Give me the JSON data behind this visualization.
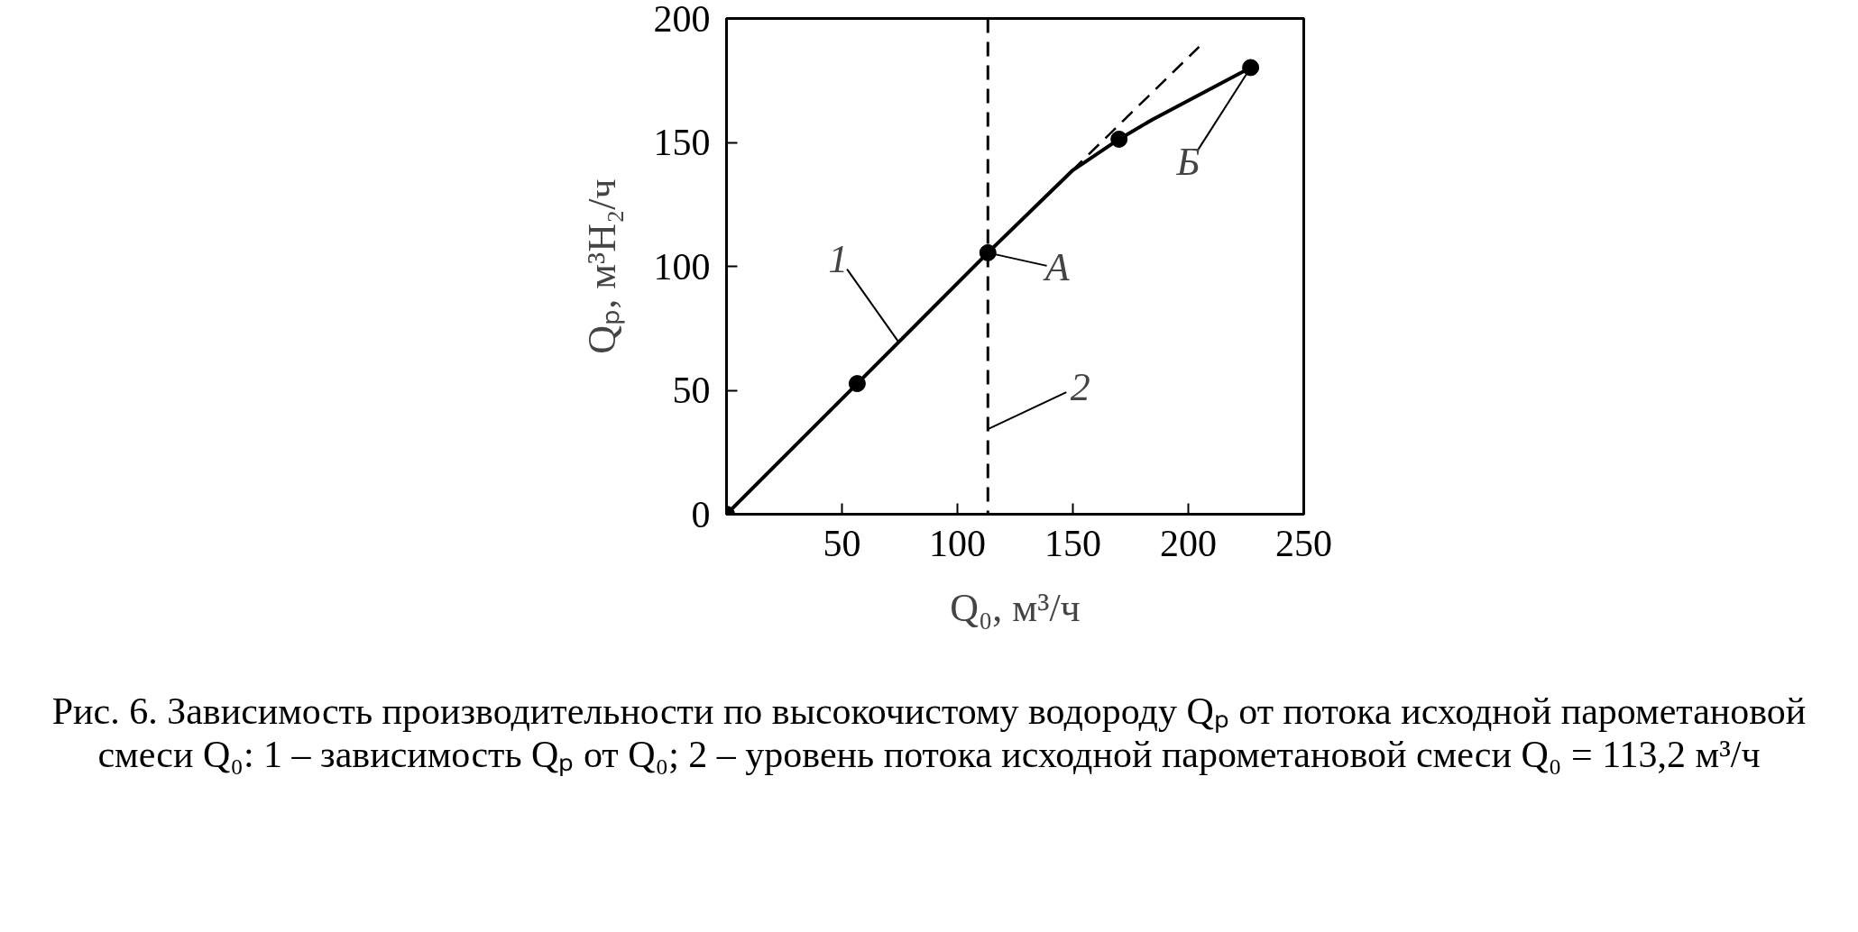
{
  "chart_data": {
    "type": "line",
    "xlabel": "Q₀, м³/ч",
    "ylabel": "Qₚ, м³H₂/ч",
    "xlim": [
      0,
      250
    ],
    "ylim": [
      0,
      200
    ],
    "xticks": [
      50,
      100,
      150,
      200,
      250
    ],
    "yticks": [
      0,
      50,
      100,
      150,
      200
    ],
    "grid": false,
    "series": [
      {
        "color": "#000000",
        "marker": "none",
        "line_style": "solid",
        "x": [
          0,
          56.6,
          113.2,
          150,
          170,
          184.6,
          227
        ],
        "values": [
          0,
          52.7,
          105.5,
          138.8,
          151.3,
          159.3,
          180.2
        ]
      },
      {
        "type": "scatter",
        "color": "#000000",
        "marker": "circle",
        "x": [
          0,
          56.6,
          113.2,
          170,
          227
        ],
        "values": [
          0,
          52.7,
          105.5,
          151.3,
          180.2
        ]
      },
      {
        "color": "#000000",
        "marker": "none",
        "line_style": "dashed",
        "x": [
          113.2,
          204.7
        ],
        "values": [
          105.5,
          188.6
        ]
      }
    ],
    "ref_lines": [
      {
        "axis": "x",
        "value": 113.2,
        "line_style": "dashed",
        "color": "#000000"
      }
    ],
    "annotations": [
      {
        "text": "1",
        "x": 74.3,
        "y": 69.8
      },
      {
        "text": "A",
        "x": 113.2,
        "y": 105.5
      },
      {
        "text": "Б",
        "x": 227,
        "y": 180.2
      },
      {
        "text": "2",
        "x": 113.2,
        "y": 34.3
      },
      "Рис. 6. Зависимость производительности по высокочистому водороду Qₚ от потока исходной парометановой смеси Q₀: 1 – зависимость Qₚ от Q₀; 2 – уровень потока исходной парометановой смеси Q₀ = 113,2 м³/ч"
    ]
  }
}
